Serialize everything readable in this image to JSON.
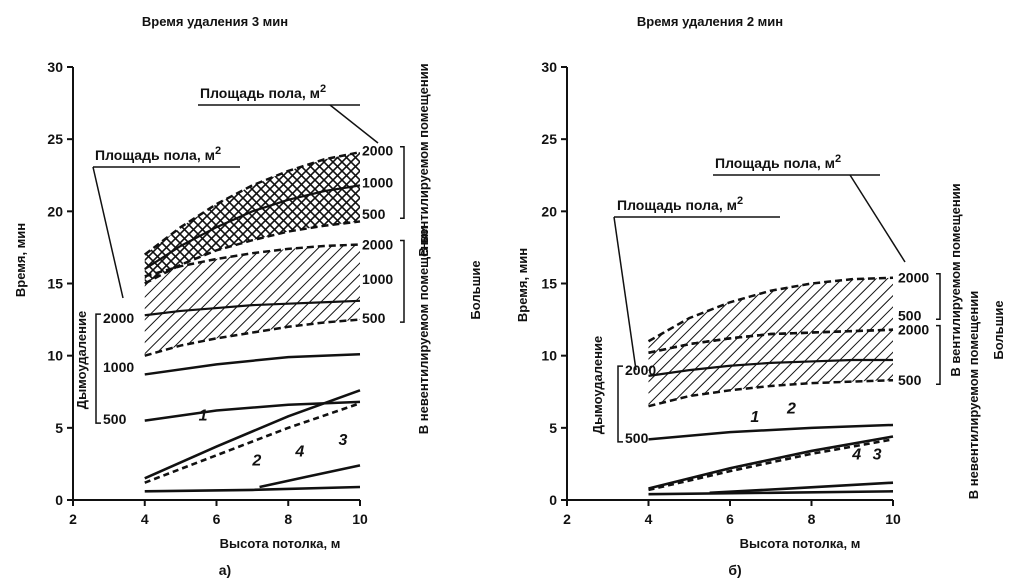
{
  "chart_data": [
    {
      "type": "line",
      "panel_label": "а)",
      "title": "Время удаления 3 мин",
      "xlabel": "Высота потолка, м",
      "ylabel": "Время, мин",
      "xlim": [
        2,
        10
      ],
      "ylim": [
        0,
        30
      ],
      "xticks": [
        "2",
        "4",
        "6",
        "8",
        "10"
      ],
      "yticks": [
        "0",
        "5",
        "10",
        "15",
        "20",
        "25",
        "30"
      ],
      "right_vertical_labels": [
        "В вентилируемом помещении",
        "В невентилируемом помещении"
      ],
      "side_label": "Большие",
      "left_group_label": "Дымоудаление",
      "floor_area_callouts": [
        {
          "text": "Площадь пола, м",
          "superscript": "2"
        },
        {
          "text": "Площадь пола, м",
          "superscript": "2"
        }
      ],
      "bands": [
        {
          "group": "ventilated",
          "hatch": "cross",
          "upper": {
            "x": [
              4,
              5,
              6,
              7,
              8,
              9,
              10
            ],
            "y": [
              17.0,
              18.9,
              20.5,
              21.8,
              22.8,
              23.6,
              24.1
            ]
          },
          "middle": {
            "x": [
              4,
              5,
              6,
              7,
              8,
              9,
              10
            ],
            "y": [
              16.0,
              17.6,
              18.9,
              20.0,
              20.8,
              21.4,
              21.8
            ]
          },
          "lower": {
            "x": [
              4,
              5,
              6,
              7,
              8,
              9,
              10
            ],
            "y": [
              15.0,
              16.3,
              17.3,
              18.0,
              18.6,
              19.0,
              19.3
            ]
          },
          "area_labels": [
            "2000",
            "1000",
            "500"
          ],
          "area_label_y": [
            24.2,
            22.0,
            19.8
          ]
        },
        {
          "group": "unventilated",
          "hatch": "diagonal",
          "upper": {
            "x": [
              4,
              5,
              6,
              7,
              8,
              9,
              10
            ],
            "y": [
              15.5,
              16.2,
              16.7,
              17.1,
              17.4,
              17.6,
              17.7
            ]
          },
          "middle": {
            "x": [
              4,
              5,
              6,
              7,
              8,
              9,
              10
            ],
            "y": [
              12.8,
              13.1,
              13.3,
              13.5,
              13.6,
              13.7,
              13.8
            ]
          },
          "lower": {
            "x": [
              4,
              5,
              6,
              7,
              8,
              9,
              10
            ],
            "y": [
              10.0,
              10.7,
              11.2,
              11.6,
              12.0,
              12.3,
              12.5
            ]
          },
          "area_labels": [
            "2000",
            "1000",
            "500"
          ],
          "area_label_y": [
            17.7,
            15.3,
            12.6
          ]
        }
      ],
      "smoke_lines": [
        {
          "label": "2000",
          "label_y": 12.6,
          "x": [],
          "y": []
        },
        {
          "label": "1000",
          "label_y": 9.2,
          "x": [
            4,
            6,
            8,
            10
          ],
          "y": [
            8.7,
            9.4,
            9.9,
            10.1
          ]
        },
        {
          "label": "500",
          "label_y": 5.6,
          "x": [
            4,
            6,
            8,
            10
          ],
          "y": [
            5.5,
            6.2,
            6.6,
            6.8
          ]
        }
      ],
      "numbered_lines": [
        {
          "name": "1",
          "style": "solid",
          "x": [
            4,
            6,
            8,
            10
          ],
          "y": [
            1.5,
            3.7,
            5.8,
            7.6
          ]
        },
        {
          "name": "2",
          "style": "dashed",
          "x": [
            4,
            6,
            8,
            10
          ],
          "y": [
            1.2,
            3.1,
            5.0,
            6.7
          ]
        },
        {
          "name": "3",
          "style": "solid",
          "x": [
            7.2,
            8.5,
            10
          ],
          "y": [
            0.9,
            1.6,
            2.4
          ]
        },
        {
          "name": "4",
          "style": "solid",
          "x": [
            4,
            7,
            10
          ],
          "y": [
            0.6,
            0.7,
            0.9
          ]
        }
      ],
      "numbered_labels": [
        {
          "text": "1",
          "x": 5.5,
          "y": 5.5
        },
        {
          "text": "2",
          "x": 7.0,
          "y": 2.4
        },
        {
          "text": "4",
          "x": 8.2,
          "y": 3.0
        },
        {
          "text": "3",
          "x": 9.4,
          "y": 3.8
        }
      ]
    },
    {
      "type": "line",
      "panel_label": "б)",
      "title": "Время удаления 2 мин",
      "xlabel": "Высота потолка, м",
      "ylabel": "Время, мин",
      "xlim": [
        2,
        10
      ],
      "ylim": [
        0,
        30
      ],
      "xticks": [
        "2",
        "4",
        "6",
        "8",
        "10"
      ],
      "yticks": [
        "0",
        "5",
        "10",
        "15",
        "20",
        "25",
        "30"
      ],
      "right_vertical_labels": [
        "В вентилируемом помещении",
        "В невентилируемом помещении"
      ],
      "side_label": "Большие",
      "left_group_label": "Дымоудаление",
      "floor_area_callouts": [
        {
          "text": "Площадь пола, м",
          "superscript": "2"
        },
        {
          "text": "Площадь пола, м",
          "superscript": "2"
        }
      ],
      "bands": [
        {
          "group": "ventilated",
          "hatch": "diagonal",
          "upper": {
            "x": [
              4,
              5,
              6,
              7,
              8,
              9,
              10
            ],
            "y": [
              11.0,
              12.6,
              13.7,
              14.5,
              15.0,
              15.3,
              15.4
            ]
          },
          "lower": {
            "x": [
              4,
              5,
              6,
              7,
              8,
              9,
              10
            ],
            "y": [
              10.2,
              10.8,
              11.2,
              11.5,
              11.6,
              11.7,
              11.8
            ]
          },
          "area_labels": [
            "2000",
            "500"
          ],
          "area_label_y": [
            15.4,
            12.8
          ]
        },
        {
          "group": "unventilated",
          "hatch": "diagonal",
          "upper": {
            "x": [
              4,
              5,
              6,
              7,
              8,
              9,
              10
            ],
            "y": [
              10.2,
              10.8,
              11.2,
              11.5,
              11.6,
              11.7,
              11.8
            ]
          },
          "middle": {
            "x": [
              4,
              5,
              6,
              7,
              8,
              9,
              10
            ],
            "y": [
              8.6,
              9.0,
              9.3,
              9.5,
              9.6,
              9.7,
              9.7
            ]
          },
          "lower": {
            "x": [
              4,
              5,
              6,
              7,
              8,
              9,
              10
            ],
            "y": [
              6.5,
              7.2,
              7.6,
              7.9,
              8.1,
              8.2,
              8.3
            ]
          },
          "area_labels": [
            "2000",
            "500"
          ],
          "area_label_y": [
            11.8,
            8.3
          ]
        }
      ],
      "smoke_lines": [
        {
          "label": "2000",
          "label_y": 9.0,
          "x": [],
          "y": []
        },
        {
          "label": "500",
          "label_y": 4.3,
          "x": [
            4,
            6,
            8,
            10
          ],
          "y": [
            4.2,
            4.7,
            5.0,
            5.2
          ]
        }
      ],
      "numbered_lines": [
        {
          "name": "1",
          "style": "solid",
          "x": [
            4,
            6,
            8,
            10
          ],
          "y": [
            0.8,
            2.2,
            3.4,
            4.4
          ]
        },
        {
          "name": "2",
          "style": "dashed",
          "x": [
            4,
            6,
            8,
            10
          ],
          "y": [
            0.7,
            2.0,
            3.2,
            4.2
          ]
        },
        {
          "name": "3",
          "style": "solid",
          "x": [
            5.5,
            7.5,
            10
          ],
          "y": [
            0.5,
            0.8,
            1.2
          ]
        },
        {
          "name": "4",
          "style": "solid",
          "x": [
            4,
            7,
            10
          ],
          "y": [
            0.4,
            0.5,
            0.6
          ]
        }
      ],
      "numbered_labels": [
        {
          "text": "1",
          "x": 6.5,
          "y": 5.4
        },
        {
          "text": "2",
          "x": 7.4,
          "y": 6.0
        },
        {
          "text": "4",
          "x": 9.0,
          "y": 2.8
        },
        {
          "text": "3",
          "x": 9.5,
          "y": 2.8
        }
      ]
    }
  ]
}
